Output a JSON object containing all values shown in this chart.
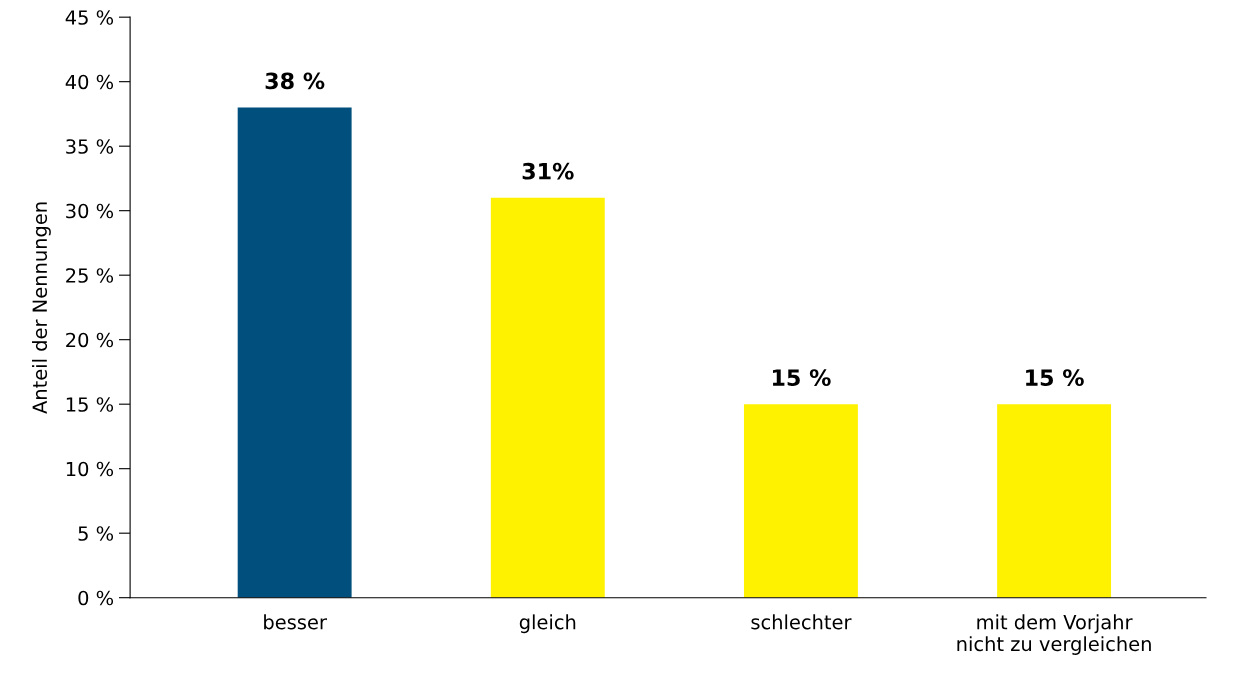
{
  "chart_data": {
    "type": "bar",
    "ylabel": "Anteil der Nennungen",
    "categories": [
      "besser",
      "gleich",
      "schlechter",
      "mit dem Vorjahr\nnicht zu vergleichen"
    ],
    "values": [
      38,
      31,
      15,
      15
    ],
    "colors": [
      "#004f7c",
      "#fff200",
      "#fff200",
      "#fff200"
    ],
    "value_labels": [
      "38 %",
      "31%",
      "15 %",
      "15 %"
    ],
    "ylim": [
      0,
      45
    ],
    "yticks": [
      {
        "value": 0,
        "label": "0 %"
      },
      {
        "value": 5,
        "label": "5 %"
      },
      {
        "value": 10,
        "label": "10 %"
      },
      {
        "value": 15,
        "label": "15 %"
      },
      {
        "value": 20,
        "label": "20 %"
      },
      {
        "value": 25,
        "label": "25 %"
      },
      {
        "value": 30,
        "label": "30 %"
      },
      {
        "value": 35,
        "label": "35 %"
      },
      {
        "value": 40,
        "label": "40 %"
      },
      {
        "value": 45,
        "label": "45 %"
      }
    ],
    "grid": false,
    "legend": false
  }
}
